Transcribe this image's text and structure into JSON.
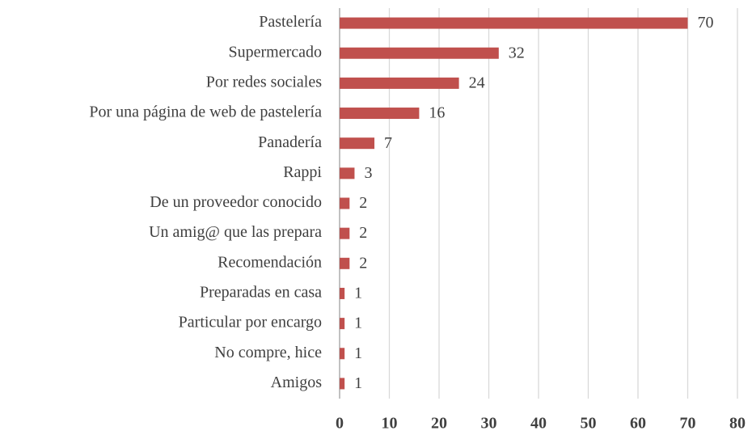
{
  "chart_data": {
    "type": "bar",
    "orientation": "horizontal",
    "categories": [
      "Pastelería",
      "Supermercado",
      "Por redes sociales",
      "Por una página de web de pastelería",
      "Panadería",
      "Rappi",
      "De un proveedor conocido",
      "Un amig@ que las prepara",
      "Recomendación",
      "Preparadas en casa",
      "Particular por encargo",
      "No compre, hice",
      "Amigos"
    ],
    "values": [
      70,
      32,
      24,
      16,
      7,
      3,
      2,
      2,
      2,
      1,
      1,
      1,
      1
    ],
    "color": "#c0504d",
    "xlim": [
      0,
      80
    ],
    "xticks": [
      0,
      10,
      20,
      30,
      40,
      50,
      60,
      70,
      80
    ],
    "grid": true
  }
}
